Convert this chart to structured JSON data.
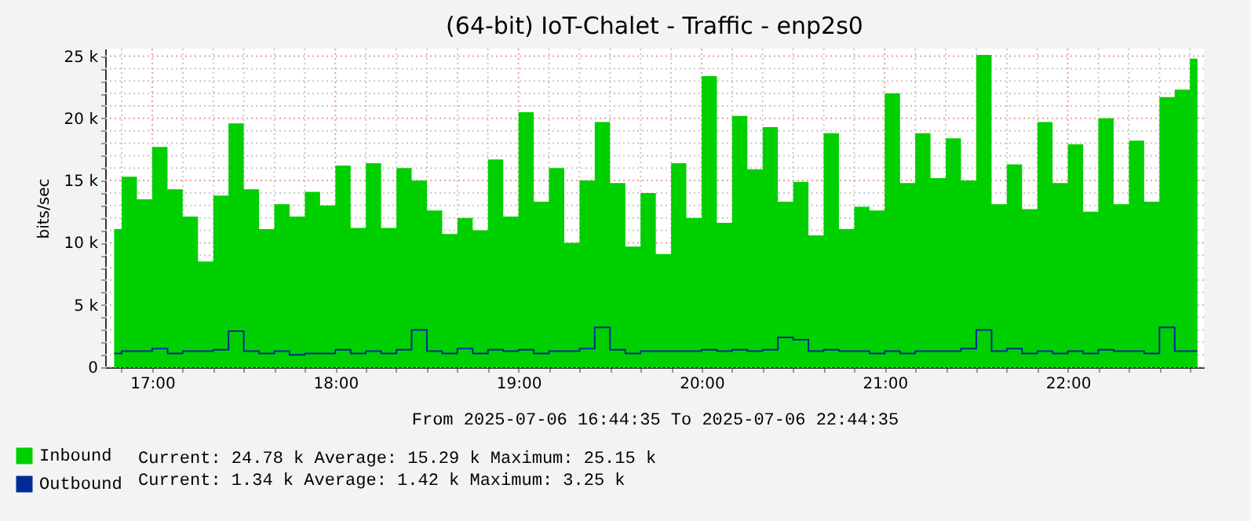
{
  "chart_data": {
    "type": "step",
    "title": "(64-bit)  IoT-Chalet - Traffic - enp2s0",
    "xlabel": "From 2025-07-06 16:44:35 To 2025-07-06 22:44:35",
    "ylabel": "bits/sec",
    "x": [
      16.792,
      16.875,
      16.958,
      17.042,
      17.125,
      17.208,
      17.292,
      17.375,
      17.458,
      17.542,
      17.625,
      17.708,
      17.792,
      17.875,
      17.958,
      18.042,
      18.125,
      18.208,
      18.292,
      18.375,
      18.458,
      18.542,
      18.625,
      18.708,
      18.792,
      18.875,
      18.958,
      19.042,
      19.125,
      19.208,
      19.292,
      19.375,
      19.458,
      19.542,
      19.625,
      19.708,
      19.792,
      19.875,
      19.958,
      20.042,
      20.125,
      20.208,
      20.292,
      20.375,
      20.458,
      20.542,
      20.625,
      20.708,
      20.792,
      20.875,
      20.958,
      21.042,
      21.125,
      21.208,
      21.292,
      21.375,
      21.458,
      21.542,
      21.625,
      21.708,
      21.792,
      21.875,
      21.958,
      22.042,
      22.125,
      22.208,
      22.292,
      22.375,
      22.458,
      22.542,
      22.625,
      22.708
    ],
    "series": [
      {
        "name": "Inbound",
        "color": "#00cf00",
        "type": "area",
        "values": [
          11.1,
          15.3,
          13.5,
          17.7,
          14.3,
          12.1,
          8.5,
          13.8,
          19.6,
          14.3,
          11.1,
          13.1,
          12.1,
          14.1,
          13.0,
          16.2,
          11.2,
          16.4,
          11.2,
          16.0,
          15.0,
          12.6,
          10.7,
          12.0,
          11.0,
          16.7,
          12.1,
          20.5,
          13.3,
          16.0,
          10.0,
          15.0,
          19.7,
          14.8,
          9.7,
          14.0,
          9.1,
          16.4,
          12.0,
          23.4,
          11.6,
          20.2,
          15.9,
          19.3,
          13.3,
          14.9,
          10.6,
          18.8,
          11.1,
          12.9,
          12.6,
          22.0,
          14.8,
          18.8,
          15.2,
          18.4,
          15.0,
          25.1,
          13.1,
          16.3,
          12.7,
          19.7,
          14.8,
          17.9,
          12.5,
          20.0,
          13.1,
          18.2,
          13.3,
          21.7,
          22.3,
          24.8
        ]
      },
      {
        "name": "Outbound",
        "color": "#002a97",
        "values": [
          1.1,
          1.3,
          1.3,
          1.5,
          1.1,
          1.3,
          1.3,
          1.4,
          2.9,
          1.3,
          1.1,
          1.3,
          1.0,
          1.1,
          1.1,
          1.4,
          1.1,
          1.3,
          1.1,
          1.4,
          3.0,
          1.3,
          1.1,
          1.5,
          1.1,
          1.4,
          1.3,
          1.4,
          1.1,
          1.3,
          1.3,
          1.5,
          3.2,
          1.4,
          1.1,
          1.3,
          1.3,
          1.3,
          1.3,
          1.4,
          1.3,
          1.4,
          1.3,
          1.4,
          2.4,
          2.2,
          1.3,
          1.4,
          1.3,
          1.3,
          1.1,
          1.3,
          1.1,
          1.3,
          1.3,
          1.3,
          1.5,
          3.0,
          1.3,
          1.5,
          1.1,
          1.3,
          1.1,
          1.3,
          1.1,
          1.4,
          1.3,
          1.3,
          1.1,
          3.2,
          1.3,
          1.3
        ]
      }
    ],
    "xlim": [
      16.743,
      22.743
    ],
    "xticks": [
      {
        "value": 16.833,
        "label": null
      },
      {
        "value": 17,
        "label": "17:00"
      },
      {
        "value": 17.167,
        "label": null
      },
      {
        "value": 17.333,
        "label": null
      },
      {
        "value": 17.5,
        "label": null
      },
      {
        "value": 17.667,
        "label": null
      },
      {
        "value": 17.833,
        "label": null
      },
      {
        "value": 18,
        "label": "18:00"
      },
      {
        "value": 18.167,
        "label": null
      },
      {
        "value": 18.333,
        "label": null
      },
      {
        "value": 18.5,
        "label": null
      },
      {
        "value": 18.667,
        "label": null
      },
      {
        "value": 18.833,
        "label": null
      },
      {
        "value": 19,
        "label": "19:00"
      },
      {
        "value": 19.167,
        "label": null
      },
      {
        "value": 19.333,
        "label": null
      },
      {
        "value": 19.5,
        "label": null
      },
      {
        "value": 19.667,
        "label": null
      },
      {
        "value": 19.833,
        "label": null
      },
      {
        "value": 20,
        "label": "20:00"
      },
      {
        "value": 20.167,
        "label": null
      },
      {
        "value": 20.333,
        "label": null
      },
      {
        "value": 20.5,
        "label": null
      },
      {
        "value": 20.667,
        "label": null
      },
      {
        "value": 20.833,
        "label": null
      },
      {
        "value": 21,
        "label": "21:00"
      },
      {
        "value": 21.167,
        "label": null
      },
      {
        "value": 21.333,
        "label": null
      },
      {
        "value": 21.5,
        "label": null
      },
      {
        "value": 21.667,
        "label": null
      },
      {
        "value": 21.833,
        "label": null
      },
      {
        "value": 22,
        "label": "22:00"
      },
      {
        "value": 22.167,
        "label": null
      },
      {
        "value": 22.333,
        "label": null
      },
      {
        "value": 22.5,
        "label": null
      },
      {
        "value": 22.667,
        "label": null
      }
    ],
    "ylim": [
      0,
      25.6
    ],
    "yticks": [
      0,
      {
        "value": 1,
        "label": null
      },
      {
        "value": 2,
        "label": null
      },
      {
        "value": 3,
        "label": null
      },
      {
        "value": 4,
        "label": null
      },
      {
        "value": 5,
        "label": "5 k"
      },
      {
        "value": 6,
        "label": null
      },
      {
        "value": 7,
        "label": null
      },
      {
        "value": 8,
        "label": null
      },
      {
        "value": 9,
        "label": null
      },
      {
        "value": 10,
        "label": "10 k"
      },
      {
        "value": 11,
        "label": null
      },
      {
        "value": 12,
        "label": null
      },
      {
        "value": 13,
        "label": null
      },
      {
        "value": 14,
        "label": null
      },
      {
        "value": 15,
        "label": "15 k"
      },
      {
        "value": 16,
        "label": null
      },
      {
        "value": 17,
        "label": null
      },
      {
        "value": 18,
        "label": null
      },
      {
        "value": 19,
        "label": null
      },
      {
        "value": 20,
        "label": "20 k"
      },
      {
        "value": 21,
        "label": null
      },
      {
        "value": 22,
        "label": null
      },
      {
        "value": 23,
        "label": null
      },
      {
        "value": 24,
        "label": null
      },
      {
        "value": 25,
        "label": "25 k"
      }
    ],
    "grid": true,
    "legend": "bottom",
    "annotations": [
      "Current:   24.78 k   Average:   15.29 k   Maximum:   25.15 k",
      "Current:    1.34 k   Average:    1.42 k   Maximum:    3.25 k"
    ]
  }
}
